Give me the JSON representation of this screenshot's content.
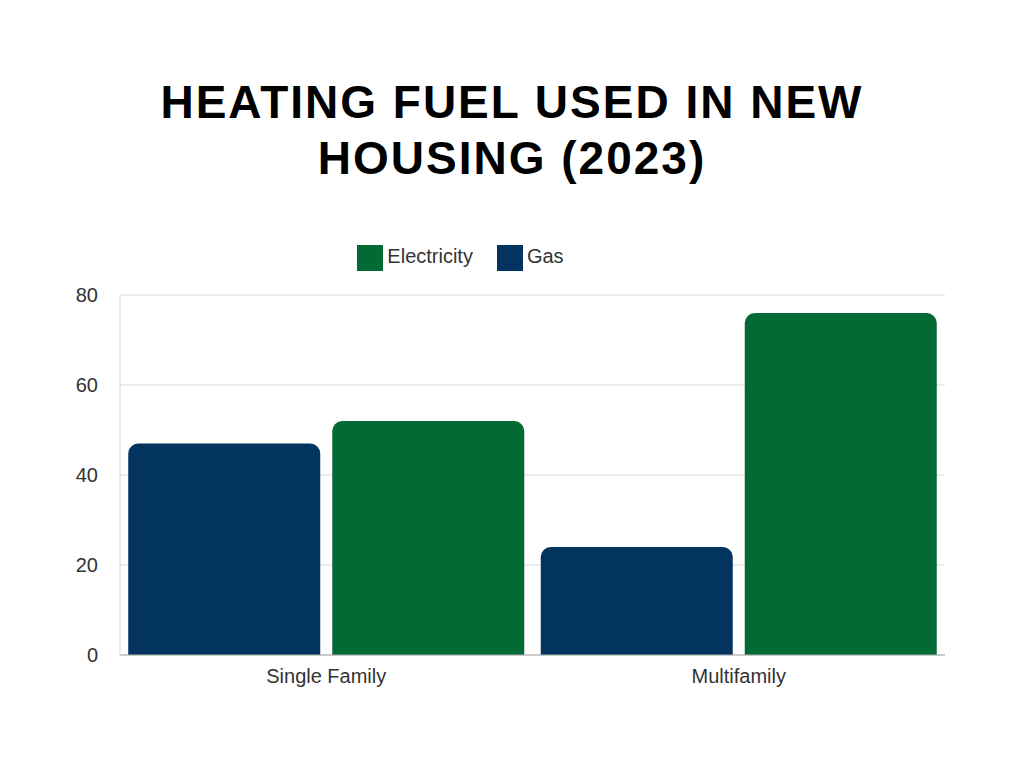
{
  "chart_data": {
    "type": "bar",
    "title": "HEATING FUEL USED IN NEW HOUSING (2023)",
    "categories": [
      "Single Family",
      "Multifamily"
    ],
    "series": [
      {
        "name": "Gas",
        "color": "#03335f",
        "values": [
          47,
          24
        ]
      },
      {
        "name": "Electricity",
        "color": "#036a34",
        "values": [
          52,
          76
        ]
      }
    ],
    "ylim": [
      0,
      80
    ],
    "yticks": [
      0,
      20,
      40,
      60,
      80
    ],
    "grid": true,
    "legend": "top"
  }
}
